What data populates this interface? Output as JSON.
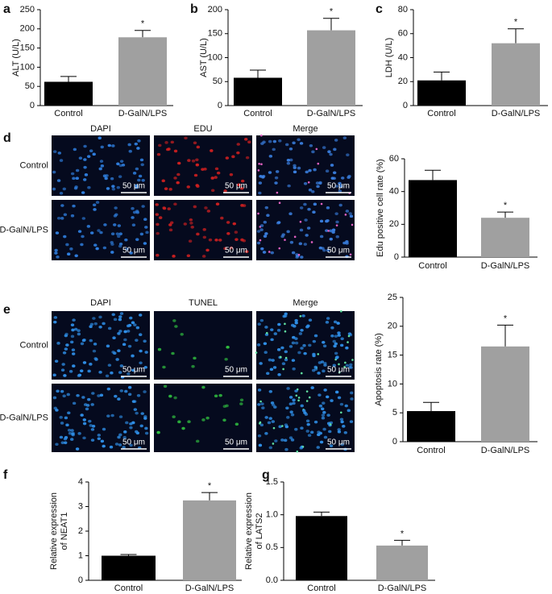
{
  "chart_data": [
    {
      "type": "bar",
      "panel": "a",
      "ylabel": [
        "ALT (U/L)"
      ],
      "categories": [
        "Control",
        "D-GalN/LPS"
      ],
      "values": [
        62,
        178
      ],
      "errors": [
        14,
        18
      ],
      "colors": [
        "#000000",
        "#a0a0a0"
      ],
      "significance": [
        null,
        "*"
      ],
      "ylim": [
        0,
        250
      ],
      "yticks": [
        0,
        50,
        100,
        150,
        200,
        250
      ]
    },
    {
      "type": "bar",
      "panel": "b",
      "ylabel": [
        "AST (U/L)"
      ],
      "categories": [
        "Control",
        "D-GalN/LPS"
      ],
      "values": [
        58,
        157
      ],
      "errors": [
        16,
        25
      ],
      "colors": [
        "#000000",
        "#a0a0a0"
      ],
      "significance": [
        null,
        "*"
      ],
      "ylim": [
        0,
        200
      ],
      "yticks": [
        0,
        50,
        100,
        150,
        200
      ]
    },
    {
      "type": "bar",
      "panel": "c",
      "ylabel": [
        "LDH (U/L)"
      ],
      "categories": [
        "Control",
        "D-GalN/LPS"
      ],
      "values": [
        21,
        52
      ],
      "errors": [
        7,
        12
      ],
      "colors": [
        "#000000",
        "#a0a0a0"
      ],
      "significance": [
        null,
        "*"
      ],
      "ylim": [
        0,
        80
      ],
      "yticks": [
        0,
        20,
        40,
        60,
        80
      ]
    },
    {
      "type": "bar",
      "panel": "d",
      "ylabel": [
        "Edu positive cell rate (%)"
      ],
      "categories": [
        "Control",
        "D-GalN/LPS"
      ],
      "values": [
        47,
        24
      ],
      "errors": [
        6,
        3.5
      ],
      "colors": [
        "#000000",
        "#a0a0a0"
      ],
      "significance": [
        null,
        "*"
      ],
      "ylim": [
        0,
        60
      ],
      "yticks": [
        0,
        20,
        40,
        60
      ]
    },
    {
      "type": "bar",
      "panel": "e",
      "ylabel": [
        "Apoptosis rate (%)"
      ],
      "categories": [
        "Control",
        "D-GalN/LPS"
      ],
      "values": [
        5.3,
        16.5
      ],
      "errors": [
        1.5,
        3.7
      ],
      "colors": [
        "#000000",
        "#a0a0a0"
      ],
      "significance": [
        null,
        "*"
      ],
      "ylim": [
        0,
        25
      ],
      "yticks": [
        0,
        5,
        10,
        15,
        20,
        25
      ]
    },
    {
      "type": "bar",
      "panel": "f",
      "ylabel": [
        "Relative expression",
        "of NEAT1"
      ],
      "categories": [
        "Control",
        "D-GalN/LPS"
      ],
      "values": [
        1.0,
        3.25
      ],
      "errors": [
        0.05,
        0.32
      ],
      "colors": [
        "#000000",
        "#a0a0a0"
      ],
      "significance": [
        null,
        "*"
      ],
      "ylim": [
        0,
        4
      ],
      "yticks": [
        0,
        1,
        2,
        3,
        4
      ]
    },
    {
      "type": "bar",
      "panel": "g",
      "ylabel": [
        "Relative expression",
        "of LATS2"
      ],
      "categories": [
        "Control",
        "D-GalN/LPS"
      ],
      "values": [
        0.98,
        0.53
      ],
      "errors": [
        0.06,
        0.08
      ],
      "colors": [
        "#000000",
        "#a0a0a0"
      ],
      "significance": [
        null,
        "*"
      ],
      "ylim": [
        0,
        1.5
      ],
      "yticks": [
        {
          "value": 0,
          "label": "0.0"
        },
        0.5,
        {
          "value": 1,
          "label": "1.0"
        },
        1.5
      ]
    }
  ],
  "image_panels": [
    {
      "columns": [
        "DAPI",
        "EDU",
        "Merge"
      ],
      "rows": [
        "Control",
        "D-GalN/LPS"
      ],
      "scale_bar": "50 μm"
    },
    {
      "columns": [
        "DAPI",
        "TUNEL",
        "Merge"
      ],
      "rows": [
        "Control",
        "D-GalN/LPS"
      ],
      "scale_bar": "50 μm"
    }
  ]
}
